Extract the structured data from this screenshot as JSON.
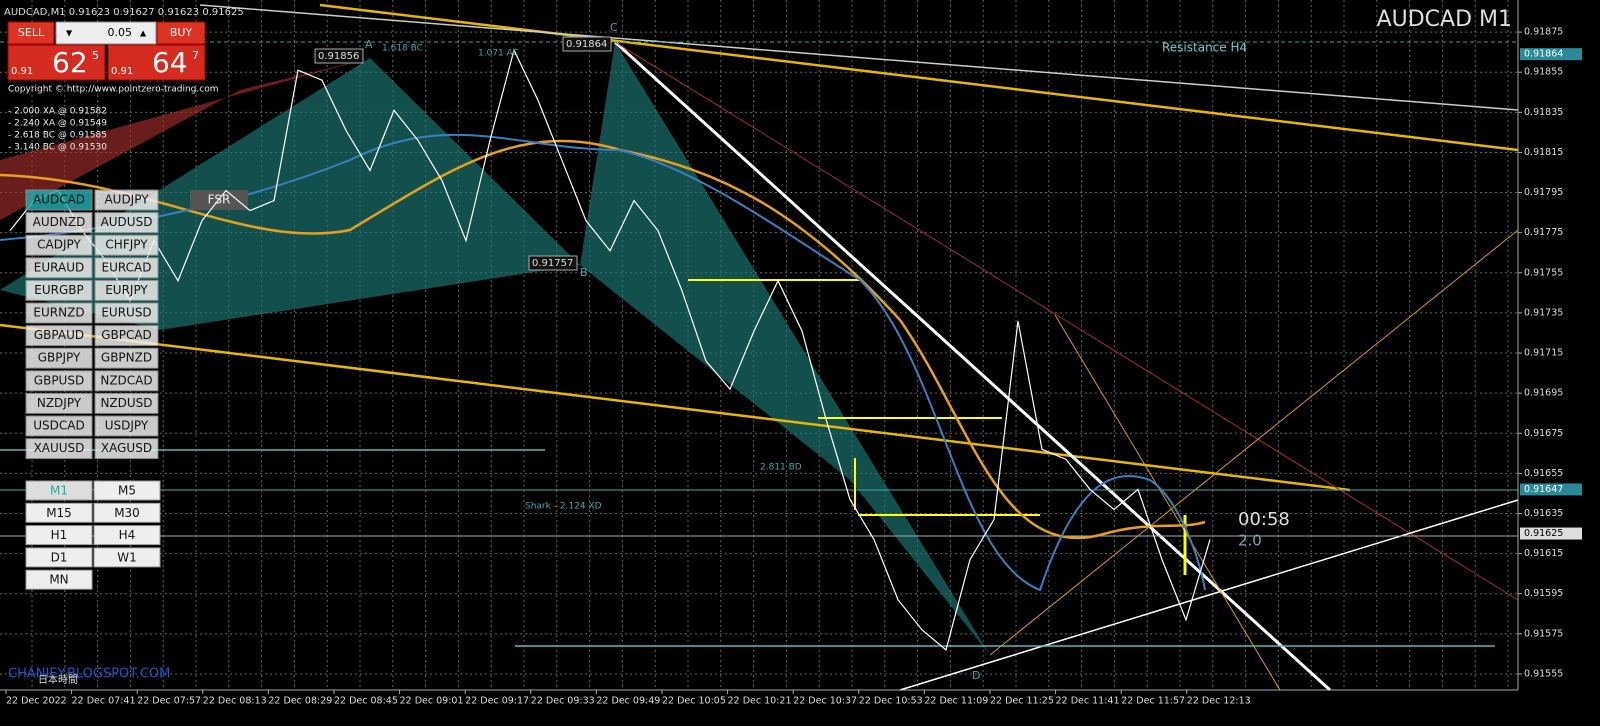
{
  "header": {
    "symbol_info": "AUDCAD,M1  0.91623 0.91627 0.91623 0.91625",
    "chart_label": "AUDCAD M1"
  },
  "trade_panel": {
    "sell": "SELL",
    "buy": "BUY",
    "lot": "0.05",
    "sell_price": {
      "prefix": "0.91",
      "big": "62",
      "small": "5"
    },
    "buy_price": {
      "prefix": "0.91",
      "big": "64",
      "small": "7"
    }
  },
  "info_lines": [
    "Copyright © http://www.pointzero-trading.com",
    "- 2.000 XA @ 0.91582",
    "- 2.240 XA @ 0.91549",
    "- 2.618 BC @ 0.91585",
    "- 3.140 BC @ 0.91530"
  ],
  "fsr": "FSR",
  "symbols": [
    "AUDCAD",
    "AUDJPY",
    "AUDNZD",
    "AUDUSD",
    "CADJPY",
    "CHFJPY",
    "EURAUD",
    "EURCAD",
    "EURGBP",
    "EURJPY",
    "EURNZD",
    "EURUSD",
    "GBPAUD",
    "GBPCAD",
    "GBPJPY",
    "GBPNZD",
    "GBPUSD",
    "NZDCAD",
    "NZDJPY",
    "NZDUSD",
    "USDCAD",
    "USDJPY",
    "XAUUSD",
    "XAGUSD"
  ],
  "timeframes": [
    "M1",
    "M5",
    "M15",
    "M30",
    "H1",
    "H4",
    "D1",
    "W1",
    "MN"
  ],
  "annotations": [
    "Resistance H4",
    "0.91856",
    "0.91864",
    "0.91757",
    "1.618 BC",
    "1.071 AC",
    "2.811 BD",
    "Shark - 2.124 XD",
    "A",
    "B",
    "C",
    "D",
    "CHANIEY.BLOGSPOT.COM",
    "日本時間"
  ],
  "timer": "00:58",
  "spread": "2.0",
  "chart_data": {
    "type": "line",
    "color": "#ffffff",
    "values": [
      0.91776,
      0.91791,
      0.91796,
      0.91776,
      0.91761,
      0.91741,
      0.91771,
      0.91751,
      0.91781,
      0.91796,
      0.91786,
      0.91791,
      0.91856,
      0.91851,
      0.91826,
      0.91806,
      0.91836,
      0.91821,
      0.91801,
      0.91771,
      0.91821,
      0.91866,
      0.91841,
      0.91811,
      0.91781,
      0.91766,
      0.91791,
      0.91776,
      0.91746,
      0.91711,
      0.91697,
      0.91726,
      0.91751,
      0.91726,
      0.91682,
      0.91642,
      0.91622,
      0.91592,
      0.91577,
      0.91567,
      0.91612,
      0.91632,
      0.91731,
      0.91667,
      0.91662,
      0.91647,
      0.91637,
      0.91647,
      0.91612,
      0.91582,
      0.91622
    ],
    "ylim": [
      0.91547,
      0.91891
    ],
    "yticks": [
      0.91875,
      0.91855,
      0.91835,
      0.91815,
      0.91795,
      0.91775,
      0.91755,
      0.91735,
      0.91715,
      0.91695,
      0.91675,
      0.91655,
      0.91635,
      0.91615,
      0.91595,
      0.91575,
      0.91555
    ],
    "price_labels": [
      0.91864,
      0.91647,
      0.91625
    ],
    "x_labels": [
      "22 Dec 2022",
      "22 Dec 07:41",
      "22 Dec 07:57",
      "22 Dec 08:13",
      "22 Dec 08:29",
      "22 Dec 08:45",
      "22 Dec 09:01",
      "22 Dec 09:17",
      "22 Dec 09:33",
      "22 Dec 09:49",
      "22 Dec 10:05",
      "22 Dec 10:21",
      "22 Dec 10:37",
      "22 Dec 10:53",
      "22 Dec 11:09",
      "22 Dec 11:25",
      "22 Dec 11:41",
      "22 Dec 11:57",
      "22 Dec 12:13"
    ],
    "grid": true
  }
}
